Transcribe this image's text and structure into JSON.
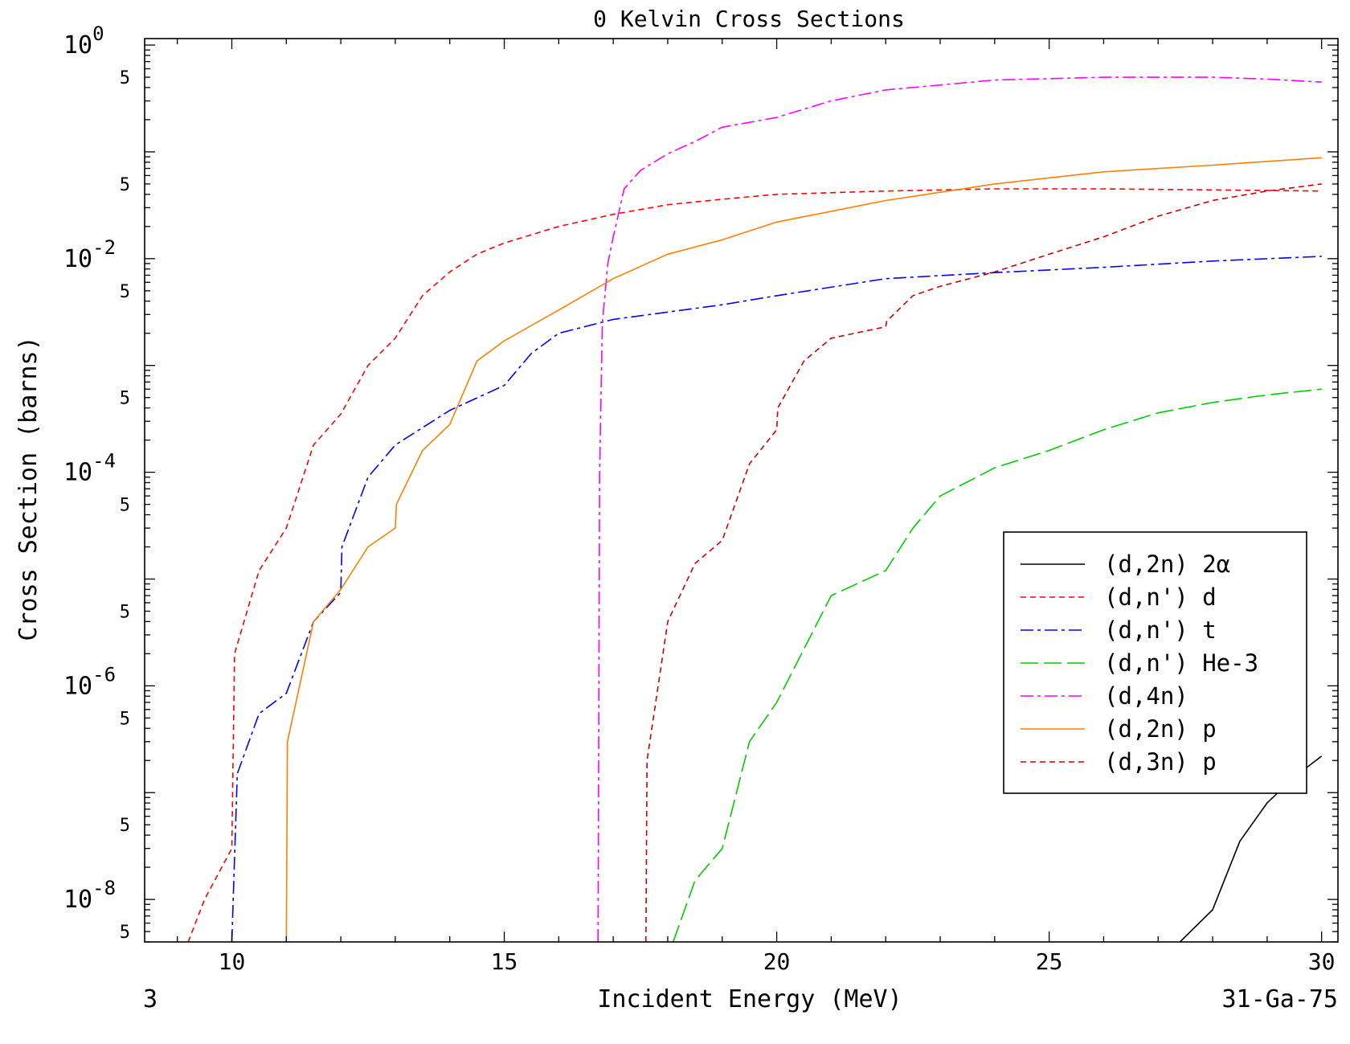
{
  "chart_data": {
    "type": "line",
    "title": "0 Kelvin Cross Sections",
    "xlabel": "Incident Energy (MeV)",
    "ylabel": "Cross Section (barns)",
    "corner_left": "3",
    "corner_right": "31-Ga-75",
    "x_scale": "linear",
    "y_scale": "log",
    "xlim": [
      8.4,
      30.3
    ],
    "ylim": [
      4e-09,
      1.15
    ],
    "x_ticks": [
      "10",
      "15",
      "20",
      "25",
      "30"
    ],
    "y_decade_labels": [
      {
        "base": "10",
        "exp": "0",
        "value": 1
      },
      {
        "base": "10",
        "exp": "-2",
        "value": 0.01
      },
      {
        "base": "10",
        "exp": "-4",
        "value": 0.0001
      },
      {
        "base": "10",
        "exp": "-6",
        "value": 1e-06
      },
      {
        "base": "10",
        "exp": "-8",
        "value": 1e-08
      }
    ],
    "y_minor_label": "5",
    "legend_position": "center-right",
    "series": [
      {
        "name": "(d,2n) 2α",
        "color": "#000000",
        "dash": "solid",
        "x": [
          27.4,
          28.0,
          28.5,
          29.0,
          29.5,
          30.0
        ],
        "y": [
          4e-09,
          8e-09,
          3.5e-08,
          8e-08,
          1.4e-07,
          2.2e-07
        ]
      },
      {
        "name": "(d,n') d",
        "color": "#ff0000",
        "dash": "short",
        "x": [
          9.2,
          9.5,
          10.0,
          10.05,
          10.5,
          11.0,
          11.5,
          12.0,
          12.5,
          13.0,
          13.5,
          14.0,
          14.5,
          15.0,
          16.0,
          17.0,
          18.0,
          19.0,
          20.0,
          22.0,
          24.0,
          26.0,
          28.0,
          30.0
        ],
        "y": [
          4e-09,
          1e-08,
          3e-08,
          2e-06,
          1.2e-05,
          3e-05,
          0.00018,
          0.00035,
          0.001,
          0.0018,
          0.0045,
          0.0075,
          0.011,
          0.014,
          0.02,
          0.026,
          0.032,
          0.036,
          0.04,
          0.043,
          0.045,
          0.045,
          0.044,
          0.043
        ]
      },
      {
        "name": "(d,n') t",
        "color": "#0000ff",
        "dash": "dashdot",
        "x": [
          10.0,
          10.1,
          10.5,
          11.0,
          11.5,
          12.0,
          12.02,
          12.5,
          13.0,
          14.0,
          15.0,
          15.5,
          16.0,
          17.0,
          19.0,
          20.0,
          22.0,
          24.0,
          26.0,
          28.0,
          30.0
        ],
        "y": [
          4e-09,
          1.5e-07,
          5.5e-07,
          8.5e-07,
          4e-06,
          7.5e-06,
          2e-05,
          9e-05,
          0.00018,
          0.00038,
          0.00065,
          0.0013,
          0.002,
          0.0027,
          0.0037,
          0.0045,
          0.0065,
          0.0074,
          0.0083,
          0.0095,
          0.0105
        ]
      },
      {
        "name": "(d,n') He-3",
        "color": "#00cc00",
        "dash": "longdash",
        "x": [
          18.1,
          18.5,
          19.0,
          19.5,
          20.0,
          21.0,
          22.0,
          22.5,
          23.0,
          24.0,
          25.0,
          26.0,
          27.0,
          28.0,
          29.0,
          30.0
        ],
        "y": [
          4e-09,
          1.5e-08,
          3e-08,
          3e-07,
          7e-07,
          7e-06,
          1.2e-05,
          3e-05,
          6e-05,
          0.00011,
          0.00016,
          0.00025,
          0.00036,
          0.00045,
          0.00053,
          0.0006
        ]
      },
      {
        "name": "(d,4n)",
        "color": "#ff00ff",
        "dash": "dashdot",
        "x": [
          16.72,
          16.75,
          16.8,
          16.9,
          17.0,
          17.2,
          17.5,
          18.0,
          18.5,
          19.0,
          20.0,
          21.0,
          22.0,
          24.0,
          26.0,
          28.0,
          29.0,
          30.0
        ],
        "y": [
          4e-09,
          0.0001,
          0.0025,
          0.009,
          0.016,
          0.045,
          0.067,
          0.096,
          0.125,
          0.17,
          0.21,
          0.3,
          0.38,
          0.47,
          0.5,
          0.5,
          0.48,
          0.45
        ]
      },
      {
        "name": "(d,2n) p",
        "color": "#ff8000",
        "dash": "solid",
        "x": [
          11.0,
          11.02,
          11.5,
          12.0,
          12.5,
          13.0,
          13.02,
          13.5,
          14.0,
          14.5,
          15.0,
          16.0,
          17.0,
          18.0,
          19.0,
          20.0,
          22.0,
          24.0,
          26.0,
          28.0,
          30.0
        ],
        "y": [
          4e-09,
          3e-07,
          4e-06,
          8e-06,
          2e-05,
          3e-05,
          5e-05,
          0.00016,
          0.00028,
          0.0011,
          0.0017,
          0.0033,
          0.0065,
          0.011,
          0.015,
          0.022,
          0.035,
          0.05,
          0.065,
          0.075,
          0.088
        ]
      },
      {
        "name": "(d,3n) p",
        "color": "#cc0000",
        "dash": "short",
        "x": [
          17.6,
          17.62,
          18.0,
          18.5,
          19.0,
          19.5,
          20.0,
          20.02,
          20.5,
          21.0,
          22.0,
          22.02,
          22.5,
          23.0,
          24.0,
          25.0,
          26.0,
          27.0,
          28.0,
          29.0,
          30.0
        ],
        "y": [
          4e-09,
          2e-07,
          4e-06,
          1.4e-05,
          2.3e-05,
          0.00012,
          0.00025,
          0.0004,
          0.0011,
          0.0018,
          0.0023,
          0.0026,
          0.0045,
          0.0055,
          0.0075,
          0.011,
          0.016,
          0.025,
          0.035,
          0.043,
          0.05
        ]
      }
    ]
  }
}
